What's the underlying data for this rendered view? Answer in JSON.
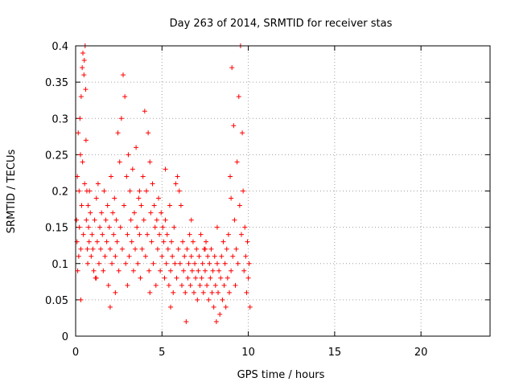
{
  "chart_data": {
    "type": "scatter",
    "title": "Day 263 of 2014, SRMTID for receiver stas",
    "xlabel": "GPS time / hours",
    "ylabel": "SRMTID / TECUs",
    "xlim": [
      0,
      24
    ],
    "ylim": [
      0,
      0.4
    ],
    "xticks": [
      0,
      5,
      10,
      15,
      20
    ],
    "yticks": [
      0,
      0.05,
      0.1,
      0.15,
      0.2,
      0.25,
      0.3,
      0.35,
      0.4
    ],
    "xtick_labels": [
      "0",
      "5",
      "10",
      "15",
      "20"
    ],
    "ytick_labels": [
      "0",
      "0.05",
      "0.1",
      "0.15",
      "0.2",
      "0.25",
      "0.3",
      "0.35",
      "0.4"
    ],
    "grid": true,
    "marker": "+",
    "color": "#ff0000",
    "series": [
      {
        "name": "stas",
        "points": [
          [
            0.05,
            0.16
          ],
          [
            0.08,
            0.13
          ],
          [
            0.1,
            0.22
          ],
          [
            0.12,
            0.09
          ],
          [
            0.15,
            0.28
          ],
          [
            0.18,
            0.11
          ],
          [
            0.2,
            0.2
          ],
          [
            0.22,
            0.15
          ],
          [
            0.25,
            0.3
          ],
          [
            0.28,
            0.25
          ],
          [
            0.3,
            0.12
          ],
          [
            0.32,
            0.33
          ],
          [
            0.35,
            0.18
          ],
          [
            0.38,
            0.37
          ],
          [
            0.4,
            0.24
          ],
          [
            0.42,
            0.39
          ],
          [
            0.45,
            0.14
          ],
          [
            0.48,
            0.36
          ],
          [
            0.5,
            0.38
          ],
          [
            0.52,
            0.21
          ],
          [
            0.55,
            0.4
          ],
          [
            0.58,
            0.34
          ],
          [
            0.6,
            0.27
          ],
          [
            0.62,
            0.16
          ],
          [
            0.65,
            0.2
          ],
          [
            0.68,
            0.12
          ],
          [
            0.7,
            0.1
          ],
          [
            0.72,
            0.18
          ],
          [
            0.75,
            0.15
          ],
          [
            0.78,
            0.13
          ],
          [
            0.8,
            0.2
          ],
          [
            0.85,
            0.17
          ],
          [
            0.9,
            0.11
          ],
          [
            0.95,
            0.14
          ],
          [
            1.0,
            0.12
          ],
          [
            1.05,
            0.09
          ],
          [
            1.1,
            0.16
          ],
          [
            1.15,
            0.08
          ],
          [
            1.2,
            0.19
          ],
          [
            1.25,
            0.13
          ],
          [
            1.3,
            0.21
          ],
          [
            1.35,
            0.1
          ],
          [
            1.4,
            0.15
          ],
          [
            1.45,
            0.12
          ],
          [
            1.5,
            0.17
          ],
          [
            1.55,
            0.14
          ],
          [
            1.6,
            0.09
          ],
          [
            1.65,
            0.2
          ],
          [
            1.7,
            0.11
          ],
          [
            1.75,
            0.16
          ],
          [
            1.8,
            0.13
          ],
          [
            1.85,
            0.18
          ],
          [
            1.9,
            0.07
          ],
          [
            1.95,
            0.15
          ],
          [
            2.0,
            0.12
          ],
          [
            2.05,
            0.22
          ],
          [
            2.1,
            0.1
          ],
          [
            2.15,
            0.17
          ],
          [
            2.2,
            0.14
          ],
          [
            2.25,
            0.19
          ],
          [
            2.3,
            0.11
          ],
          [
            2.35,
            0.16
          ],
          [
            2.4,
            0.13
          ],
          [
            2.45,
            0.28
          ],
          [
            2.5,
            0.09
          ],
          [
            2.55,
            0.24
          ],
          [
            2.6,
            0.15
          ],
          [
            2.65,
            0.3
          ],
          [
            2.7,
            0.12
          ],
          [
            2.75,
            0.36
          ],
          [
            2.8,
            0.18
          ],
          [
            2.85,
            0.33
          ],
          [
            2.9,
            0.1
          ],
          [
            2.95,
            0.22
          ],
          [
            3.0,
            0.14
          ],
          [
            3.05,
            0.25
          ],
          [
            3.1,
            0.11
          ],
          [
            3.15,
            0.2
          ],
          [
            3.2,
            0.16
          ],
          [
            3.25,
            0.13
          ],
          [
            3.3,
            0.23
          ],
          [
            3.35,
            0.09
          ],
          [
            3.4,
            0.17
          ],
          [
            3.45,
            0.12
          ],
          [
            3.5,
            0.26
          ],
          [
            3.55,
            0.15
          ],
          [
            3.6,
            0.1
          ],
          [
            3.65,
            0.19
          ],
          [
            3.7,
            0.14
          ],
          [
            3.75,
            0.08
          ],
          [
            3.8,
            0.18
          ],
          [
            3.85,
            0.12
          ],
          [
            3.9,
            0.22
          ],
          [
            3.95,
            0.16
          ],
          [
            4.0,
            0.31
          ],
          [
            4.05,
            0.11
          ],
          [
            4.1,
            0.2
          ],
          [
            4.15,
            0.14
          ],
          [
            4.2,
            0.28
          ],
          [
            4.25,
            0.09
          ],
          [
            4.3,
            0.24
          ],
          [
            4.35,
            0.17
          ],
          [
            4.4,
            0.13
          ],
          [
            4.45,
            0.21
          ],
          [
            4.5,
            0.1
          ],
          [
            4.55,
            0.18
          ],
          [
            4.6,
            0.15
          ],
          [
            4.65,
            0.07
          ],
          [
            4.7,
            0.16
          ],
          [
            4.75,
            0.12
          ],
          [
            4.8,
            0.19
          ],
          [
            4.85,
            0.14
          ],
          [
            4.9,
            0.09
          ],
          [
            4.95,
            0.17
          ],
          [
            5.0,
            0.11
          ],
          [
            5.05,
            0.15
          ],
          [
            5.1,
            0.13
          ],
          [
            5.15,
            0.08
          ],
          [
            5.2,
            0.16
          ],
          [
            5.25,
            0.1
          ],
          [
            5.3,
            0.14
          ],
          [
            5.35,
            0.12
          ],
          [
            5.4,
            0.07
          ],
          [
            5.45,
            0.18
          ],
          [
            5.5,
            0.09
          ],
          [
            5.55,
            0.13
          ],
          [
            5.6,
            0.11
          ],
          [
            5.65,
            0.06
          ],
          [
            5.7,
            0.15
          ],
          [
            5.75,
            0.1
          ],
          [
            5.8,
            0.21
          ],
          [
            5.85,
            0.08
          ],
          [
            5.9,
            0.22
          ],
          [
            5.95,
            0.12
          ],
          [
            6.0,
            0.2
          ],
          [
            6.05,
            0.1
          ],
          [
            6.1,
            0.18
          ],
          [
            6.15,
            0.07
          ],
          [
            6.2,
            0.13
          ],
          [
            6.25,
            0.09
          ],
          [
            6.3,
            0.11
          ],
          [
            6.35,
            0.06
          ],
          [
            6.4,
            0.02
          ],
          [
            6.45,
            0.12
          ],
          [
            6.5,
            0.08
          ],
          [
            6.55,
            0.1
          ],
          [
            6.6,
            0.14
          ],
          [
            6.65,
            0.07
          ],
          [
            6.7,
            0.11
          ],
          [
            6.75,
            0.09
          ],
          [
            6.8,
            0.13
          ],
          [
            6.85,
            0.06
          ],
          [
            6.9,
            0.1
          ],
          [
            6.95,
            0.08
          ],
          [
            7.0,
            0.12
          ],
          [
            7.05,
            0.05
          ],
          [
            7.1,
            0.09
          ],
          [
            7.15,
            0.11
          ],
          [
            7.2,
            0.07
          ],
          [
            7.25,
            0.14
          ],
          [
            7.3,
            0.08
          ],
          [
            7.35,
            0.1
          ],
          [
            7.4,
            0.06
          ],
          [
            7.45,
            0.12
          ],
          [
            7.5,
            0.09
          ],
          [
            7.55,
            0.13
          ],
          [
            7.6,
            0.07
          ],
          [
            7.65,
            0.11
          ],
          [
            7.7,
            0.05
          ],
          [
            7.75,
            0.1
          ],
          [
            7.8,
            0.08
          ],
          [
            7.85,
            0.12
          ],
          [
            7.9,
            0.06
          ],
          [
            7.95,
            0.09
          ],
          [
            8.0,
            0.04
          ],
          [
            8.05,
            0.11
          ],
          [
            8.1,
            0.07
          ],
          [
            8.15,
            0.02
          ],
          [
            8.2,
            0.1
          ],
          [
            8.25,
            0.06
          ],
          [
            8.3,
            0.09
          ],
          [
            8.35,
            0.03
          ],
          [
            8.4,
            0.08
          ],
          [
            8.45,
            0.11
          ],
          [
            8.5,
            0.05
          ],
          [
            8.55,
            0.13
          ],
          [
            8.6,
            0.07
          ],
          [
            8.65,
            0.1
          ],
          [
            8.7,
            0.04
          ],
          [
            8.75,
            0.12
          ],
          [
            8.8,
            0.08
          ],
          [
            8.85,
            0.14
          ],
          [
            8.9,
            0.06
          ],
          [
            8.95,
            0.22
          ],
          [
            9.0,
            0.09
          ],
          [
            9.05,
            0.37
          ],
          [
            9.1,
            0.11
          ],
          [
            9.15,
            0.29
          ],
          [
            9.2,
            0.16
          ],
          [
            9.25,
            0.07
          ],
          [
            9.3,
            0.12
          ],
          [
            9.35,
            0.24
          ],
          [
            9.4,
            0.1
          ],
          [
            9.45,
            0.33
          ],
          [
            9.5,
            0.18
          ],
          [
            9.55,
            0.4
          ],
          [
            9.6,
            0.14
          ],
          [
            9.65,
            0.28
          ],
          [
            9.7,
            0.2
          ],
          [
            9.75,
            0.09
          ],
          [
            9.8,
            0.15
          ],
          [
            9.85,
            0.11
          ],
          [
            9.9,
            0.06
          ],
          [
            9.95,
            0.13
          ],
          [
            10.0,
            0.08
          ],
          [
            10.05,
            0.1
          ],
          [
            10.1,
            0.04
          ],
          [
            0.3,
            0.05
          ],
          [
            1.2,
            0.08
          ],
          [
            2.3,
            0.06
          ],
          [
            3.0,
            0.07
          ],
          [
            4.3,
            0.06
          ],
          [
            5.5,
            0.04
          ],
          [
            2.0,
            0.04
          ],
          [
            3.7,
            0.2
          ],
          [
            5.2,
            0.23
          ],
          [
            6.7,
            0.16
          ],
          [
            7.5,
            0.12
          ],
          [
            8.2,
            0.15
          ],
          [
            9.0,
            0.19
          ]
        ]
      }
    ]
  }
}
